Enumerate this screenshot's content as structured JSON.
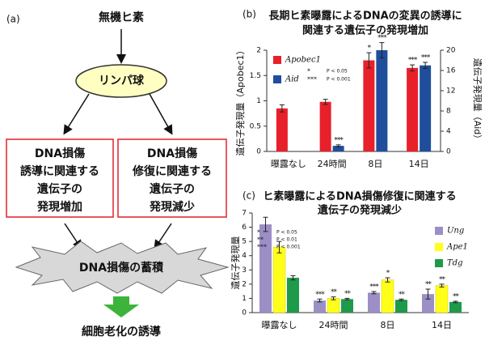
{
  "diagram": {
    "panel": "(a)",
    "source": "無機ヒ素",
    "cell": "リンパ球",
    "boxes": [
      [
        "DNA損傷",
        "誘導に関連する",
        "遺伝子の",
        "発現増加"
      ],
      [
        "DNA損傷",
        "修復に関連する",
        "遺伝子の",
        "発現減少"
      ]
    ],
    "accumulation": "DNA損傷の蓄積",
    "outcome": "細胞老化の誘導"
  },
  "chart_data": [
    {
      "type": "bar",
      "panel": "(b)",
      "title": [
        "長期ヒ素曝露によるDNAの変異の誘導に",
        "関連する遺伝子の発現増加"
      ],
      "ylabel": "遺伝子発現量（Apobec1）",
      "y2label": "遺伝子発現量（Aid）",
      "categories": [
        "曝露なし",
        "24時間",
        "8日",
        "14日"
      ],
      "series": [
        {
          "name": "Apobec1",
          "color": "#e8202a",
          "values": [
            0.85,
            0.98,
            1.8,
            1.65
          ],
          "errors": [
            0.07,
            0.05,
            0.15,
            0.06
          ],
          "labels": [
            null,
            null,
            "*",
            "***"
          ]
        },
        {
          "name": "Aid",
          "color": "#1f4e9c",
          "axis": "y2",
          "values": [
            null,
            1.1,
            20,
            17
          ],
          "errors": [
            null,
            0.2,
            1.5,
            0.6
          ],
          "labels": [
            null,
            "***",
            "***",
            "***"
          ]
        }
      ],
      "ylim": [
        0,
        2
      ],
      "yticks": [
        0,
        0.5,
        1,
        1.5,
        2
      ],
      "y2lim": [
        0,
        20
      ],
      "y2ticks": [
        0,
        4,
        8,
        12,
        16,
        20
      ],
      "notes": [
        {
          "symbol": "*",
          "text": "P < 0.05"
        },
        {
          "symbol": "***",
          "text": "P < 0.001"
        }
      ],
      "grid": false
    },
    {
      "type": "bar",
      "panel": "(c)",
      "title": [
        "ヒ素曝露によるDNA損傷修復に関連する",
        "遺伝子の発現減少"
      ],
      "ylabel": "遺伝子発現量",
      "categories": [
        "曝露なし",
        "24時間",
        "8日",
        "14日"
      ],
      "series": [
        {
          "name": "Ung",
          "color": "#9b8fc6",
          "values": [
            6.2,
            0.85,
            1.4,
            1.3
          ],
          "errors": [
            0.5,
            0.1,
            0.08,
            0.35
          ],
          "labels": [
            null,
            "***",
            "***",
            "**"
          ]
        },
        {
          "name": "Ape1",
          "color": "#ffff1a",
          "values": [
            4.6,
            1.0,
            2.3,
            1.9
          ],
          "errors": [
            0.4,
            0.1,
            0.15,
            0.1
          ],
          "labels": [
            null,
            "**",
            "*",
            "**"
          ]
        },
        {
          "name": "Tdg",
          "color": "#1e9a4a",
          "values": [
            2.45,
            0.95,
            0.9,
            0.75
          ],
          "errors": [
            0.15,
            0.05,
            0.05,
            0.05
          ],
          "labels": [
            null,
            "**",
            "**",
            "**"
          ]
        }
      ],
      "ylim": [
        0,
        7
      ],
      "yticks": [
        0,
        1,
        2,
        3,
        4,
        5,
        6,
        7
      ],
      "notes": [
        {
          "symbol": "*",
          "text": "P < 0.05"
        },
        {
          "symbol": "**",
          "text": "P < 0.01"
        },
        {
          "symbol": "***",
          "text": "P < 0.001"
        }
      ],
      "grid": false
    }
  ]
}
